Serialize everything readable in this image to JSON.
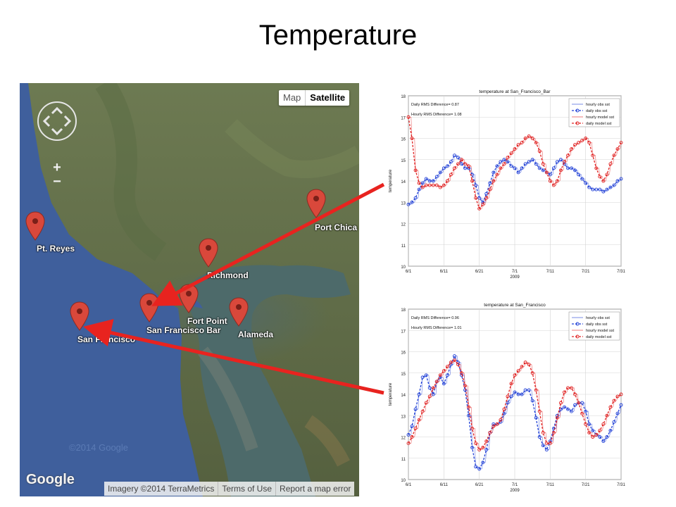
{
  "slide": {
    "title": "Temperature"
  },
  "map": {
    "map_button": "Map",
    "satellite_button": "Satellite",
    "zoom_in": "+",
    "zoom_out": "−",
    "logo": "Google",
    "watermark": "©2014 Google",
    "imagery": "Imagery ©2014 TerraMetrics",
    "terms": "Terms of Use",
    "report": "Report a map error",
    "markers": [
      {
        "label": "Pt. Reyes"
      },
      {
        "label": "Port Chica"
      },
      {
        "label": "Richmond"
      },
      {
        "label": "Fort Point"
      },
      {
        "label": "San Francisco Bar"
      },
      {
        "label": "Alameda"
      },
      {
        "label": "San Francisco"
      }
    ],
    "colors": {
      "ocean": "#3f5f9c",
      "marker": "#d9483b",
      "arrow": "#e8231f"
    }
  },
  "chart_data": [
    {
      "type": "line",
      "title": "temperature at San_Francisco_Bar",
      "xlabel": "2009",
      "ylabel": "temperature",
      "ylim": [
        10,
        18
      ],
      "yticks": [
        "10",
        "11",
        "12",
        "13",
        "14",
        "15",
        "16",
        "17",
        "18"
      ],
      "xticks": [
        "6/1",
        "6/11",
        "6/21",
        "7/1",
        "7/11",
        "7/21",
        "7/31"
      ],
      "annotations": [
        "Daily RMS Difference= 0.87",
        "Hourly RMS Difference= 1.08"
      ],
      "legend": [
        "hourly obs sst",
        "daily obs sst",
        "hourly model sst",
        "daily model sst"
      ],
      "legend_position": "top-right",
      "grid": true,
      "x": [
        1,
        2,
        3,
        4,
        5,
        6,
        7,
        8,
        9,
        10,
        11,
        12,
        13,
        14,
        15,
        16,
        17,
        18,
        19,
        20,
        21,
        22,
        23,
        24,
        25,
        26,
        27,
        28,
        29,
        30,
        31,
        32,
        33,
        34,
        35,
        36,
        37,
        38,
        39,
        40,
        41,
        42,
        43,
        44,
        45,
        46,
        47,
        48,
        49,
        50,
        51,
        52,
        53,
        54,
        55,
        56,
        57,
        58,
        59,
        60,
        61
      ],
      "series": [
        {
          "name": "daily obs sst",
          "color": "#1f3fd6",
          "values": [
            12.9,
            13.0,
            13.2,
            13.6,
            13.9,
            14.1,
            14.0,
            14.0,
            14.2,
            14.4,
            14.6,
            14.7,
            14.9,
            15.2,
            15.1,
            14.8,
            14.6,
            14.6,
            14.3,
            13.8,
            13.2,
            13.0,
            13.4,
            13.9,
            14.4,
            14.7,
            14.9,
            15.0,
            14.9,
            14.7,
            14.6,
            14.4,
            14.6,
            14.8,
            14.9,
            15.0,
            14.8,
            14.6,
            14.5,
            14.4,
            14.3,
            14.6,
            14.9,
            15.0,
            14.8,
            14.6,
            14.6,
            14.5,
            14.3,
            14.1,
            13.9,
            13.7,
            13.6,
            13.6,
            13.6,
            13.5,
            13.6,
            13.7,
            13.8,
            14.0,
            14.1
          ]
        },
        {
          "name": "daily model sst",
          "color": "#e02020",
          "values": [
            17.0,
            16.0,
            14.5,
            13.9,
            13.7,
            13.8,
            13.8,
            13.8,
            13.8,
            13.7,
            13.8,
            14.0,
            14.3,
            14.6,
            14.8,
            15.0,
            14.8,
            14.7,
            14.0,
            13.2,
            12.7,
            12.9,
            13.2,
            13.6,
            14.0,
            14.3,
            14.6,
            14.8,
            15.1,
            15.3,
            15.5,
            15.7,
            15.8,
            16.0,
            16.1,
            16.0,
            15.8,
            15.4,
            14.8,
            14.4,
            14.0,
            13.8,
            14.0,
            14.5,
            14.9,
            15.2,
            15.5,
            15.7,
            15.8,
            15.9,
            16.0,
            15.8,
            15.2,
            14.6,
            14.2,
            14.0,
            14.3,
            14.8,
            15.2,
            15.5,
            15.8
          ]
        }
      ]
    },
    {
      "type": "line",
      "title": "temperature at San_Francisco",
      "xlabel": "2009",
      "ylabel": "temperature",
      "ylim": [
        10,
        18
      ],
      "yticks": [
        "10",
        "11",
        "12",
        "13",
        "14",
        "15",
        "16",
        "17",
        "18"
      ],
      "xticks": [
        "6/1",
        "6/11",
        "6/21",
        "7/1",
        "7/11",
        "7/21",
        "7/31"
      ],
      "annotations": [
        "Daily RMS Difference= 0.96",
        "Hourly RMS Difference= 1.01"
      ],
      "legend": [
        "hourly obs sst",
        "daily obs sst",
        "hourly model sst",
        "daily model sst"
      ],
      "legend_position": "top-right",
      "grid": true,
      "x": [
        1,
        2,
        3,
        4,
        5,
        6,
        7,
        8,
        9,
        10,
        11,
        12,
        13,
        14,
        15,
        16,
        17,
        18,
        19,
        20,
        21,
        22,
        23,
        24,
        25,
        26,
        27,
        28,
        29,
        30,
        31,
        32,
        33,
        34,
        35,
        36,
        37,
        38,
        39,
        40,
        41,
        42,
        43,
        44,
        45,
        46,
        47,
        48,
        49,
        50,
        51,
        52,
        53,
        54,
        55,
        56,
        57,
        58,
        59,
        60,
        61
      ],
      "series": [
        {
          "name": "daily obs sst",
          "color": "#1f3fd6",
          "values": [
            12.1,
            12.5,
            13.3,
            14.0,
            14.8,
            14.9,
            14.3,
            14.0,
            14.6,
            14.8,
            14.5,
            14.9,
            15.4,
            15.8,
            15.5,
            14.9,
            14.2,
            13.0,
            11.5,
            10.6,
            10.5,
            10.8,
            11.4,
            12.2,
            12.6,
            12.6,
            12.7,
            13.1,
            13.6,
            13.9,
            14.1,
            14.0,
            14.0,
            14.2,
            14.2,
            13.7,
            12.9,
            12.0,
            11.6,
            11.4,
            11.8,
            12.4,
            13.0,
            13.3,
            13.4,
            13.3,
            13.2,
            13.5,
            13.6,
            13.6,
            13.2,
            12.6,
            12.3,
            12.1,
            12.0,
            11.8,
            12.0,
            12.3,
            12.7,
            13.1,
            13.5
          ]
        },
        {
          "name": "daily model sst",
          "color": "#e02020",
          "values": [
            11.7,
            12.0,
            12.4,
            12.8,
            13.2,
            13.6,
            13.9,
            14.3,
            14.6,
            14.9,
            15.1,
            15.3,
            15.5,
            15.6,
            15.4,
            15.0,
            14.4,
            13.4,
            12.4,
            11.7,
            11.4,
            11.5,
            11.8,
            12.2,
            12.5,
            12.6,
            12.8,
            13.3,
            13.9,
            14.5,
            14.9,
            15.1,
            15.3,
            15.5,
            15.4,
            15.0,
            14.2,
            13.2,
            12.2,
            11.7,
            11.7,
            12.2,
            12.9,
            13.6,
            14.1,
            14.3,
            14.3,
            14.0,
            13.6,
            13.1,
            12.6,
            12.2,
            12.0,
            12.1,
            12.3,
            12.6,
            13.0,
            13.4,
            13.7,
            13.9,
            14.0
          ]
        }
      ]
    }
  ]
}
